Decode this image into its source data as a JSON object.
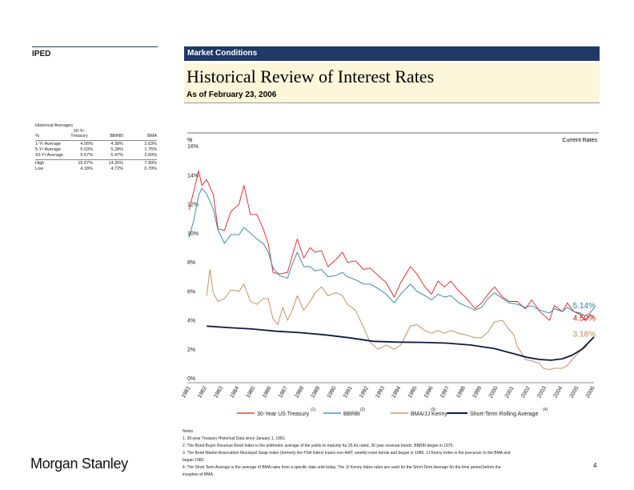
{
  "left_label": "IPED",
  "header": {
    "section": "Market Conditions"
  },
  "title": "Historical Review of Interest Rates",
  "subtitle": "As of February 23, 2006",
  "averages_table": {
    "title": "Historical Averages",
    "headers": [
      "%",
      "30-Yr. Treasury",
      "BBRBI",
      "BMA"
    ],
    "rows": [
      [
        "1-Yr Average",
        "4.56%",
        "4.38%",
        "2.63%"
      ],
      [
        "5-Yr Average",
        "5.03%",
        "5.28%",
        "1.75%"
      ],
      [
        "10-Yr Average",
        "5.67%",
        "5.47%",
        "2.60%"
      ]
    ],
    "extremes": [
      [
        "High",
        "15.07%",
        "14.26%",
        "7.99%"
      ],
      [
        "Low",
        "4.18%",
        "4.72%",
        "0.79%"
      ]
    ]
  },
  "chart_data": {
    "type": "line",
    "ylabel": "%",
    "annotation": "Current Rates",
    "ylim": [
      0,
      16
    ],
    "yticks": [
      "0%",
      "2%",
      "4%",
      "6%",
      "8%",
      "10%",
      "12%",
      "14%",
      "16%"
    ],
    "xlim": [
      1981,
      2006.15
    ],
    "xticks": [
      "1981",
      "1982",
      "1983",
      "1984",
      "1985",
      "1986",
      "1987",
      "1988",
      "1989",
      "1990",
      "1991",
      "1992",
      "1993",
      "1994",
      "1995",
      "1996",
      "1997",
      "1998",
      "1999",
      "2000",
      "2001",
      "2002",
      "2003",
      "2004",
      "2005",
      "2006"
    ],
    "current_labels": [
      {
        "text": "5.14%",
        "value": 5.14,
        "color": "#2e7fa0"
      },
      {
        "text": "4.50%",
        "value": 4.5,
        "color": "#cc1a1a"
      },
      {
        "text": "3.18%",
        "value": 3.18,
        "color": "#b8885a"
      }
    ],
    "series": [
      {
        "name": "30-Year US Treasury",
        "color": "#dd1f26",
        "points": [
          [
            1981.1,
            11.9
          ],
          [
            1981.4,
            13.2
          ],
          [
            1981.7,
            14.6
          ],
          [
            1981.9,
            13.6
          ],
          [
            1982.2,
            14.0
          ],
          [
            1982.6,
            13.0
          ],
          [
            1982.9,
            10.6
          ],
          [
            1983.3,
            10.5
          ],
          [
            1983.7,
            11.8
          ],
          [
            1984.2,
            12.3
          ],
          [
            1984.5,
            13.6
          ],
          [
            1984.9,
            11.6
          ],
          [
            1985.3,
            11.6
          ],
          [
            1985.7,
            10.6
          ],
          [
            1986.0,
            9.6
          ],
          [
            1986.3,
            7.6
          ],
          [
            1986.7,
            7.5
          ],
          [
            1987.2,
            7.6
          ],
          [
            1987.5,
            8.8
          ],
          [
            1987.8,
            9.9
          ],
          [
            1988.2,
            8.6
          ],
          [
            1988.6,
            9.3
          ],
          [
            1988.9,
            9.0
          ],
          [
            1989.3,
            9.1
          ],
          [
            1989.7,
            8.0
          ],
          [
            1990.2,
            8.5
          ],
          [
            1990.6,
            9.0
          ],
          [
            1990.9,
            8.3
          ],
          [
            1991.4,
            8.4
          ],
          [
            1991.9,
            7.8
          ],
          [
            1992.3,
            7.9
          ],
          [
            1992.8,
            7.4
          ],
          [
            1993.3,
            6.9
          ],
          [
            1993.8,
            5.9
          ],
          [
            1994.2,
            6.9
          ],
          [
            1994.8,
            8.0
          ],
          [
            1995.2,
            7.5
          ],
          [
            1995.7,
            6.6
          ],
          [
            1996.1,
            6.1
          ],
          [
            1996.5,
            7.0
          ],
          [
            1996.9,
            6.6
          ],
          [
            1997.3,
            7.0
          ],
          [
            1997.8,
            6.3
          ],
          [
            1998.2,
            5.9
          ],
          [
            1998.8,
            5.1
          ],
          [
            1999.2,
            5.5
          ],
          [
            1999.6,
            6.1
          ],
          [
            2000.0,
            6.6
          ],
          [
            2000.5,
            5.9
          ],
          [
            2000.9,
            5.6
          ],
          [
            2001.4,
            5.6
          ],
          [
            2001.9,
            5.1
          ],
          [
            2002.3,
            5.7
          ],
          [
            2002.8,
            4.9
          ],
          [
            2003.4,
            4.3
          ],
          [
            2003.7,
            5.3
          ],
          [
            2004.2,
            4.9
          ],
          [
            2004.5,
            5.5
          ],
          [
            2004.9,
            4.9
          ],
          [
            2005.3,
            4.7
          ],
          [
            2005.6,
            4.3
          ],
          [
            2005.9,
            4.7
          ],
          [
            2006.15,
            4.5
          ]
        ]
      },
      {
        "name": "BBRBI",
        "color": "#2e7fa0",
        "points": [
          [
            1981.1,
            10.0
          ],
          [
            1981.4,
            11.2
          ],
          [
            1981.7,
            12.9
          ],
          [
            1981.9,
            13.4
          ],
          [
            1982.2,
            13.0
          ],
          [
            1982.6,
            12.0
          ],
          [
            1982.9,
            10.5
          ],
          [
            1983.3,
            9.6
          ],
          [
            1983.7,
            10.2
          ],
          [
            1984.2,
            10.2
          ],
          [
            1984.5,
            10.7
          ],
          [
            1984.9,
            10.3
          ],
          [
            1985.3,
            9.9
          ],
          [
            1985.7,
            9.6
          ],
          [
            1986.0,
            9.0
          ],
          [
            1986.3,
            7.9
          ],
          [
            1986.7,
            7.4
          ],
          [
            1987.2,
            7.2
          ],
          [
            1987.5,
            8.2
          ],
          [
            1987.8,
            9.0
          ],
          [
            1988.2,
            8.0
          ],
          [
            1988.6,
            8.0
          ],
          [
            1988.9,
            7.7
          ],
          [
            1989.3,
            7.8
          ],
          [
            1989.7,
            7.3
          ],
          [
            1990.2,
            7.4
          ],
          [
            1990.6,
            7.6
          ],
          [
            1990.9,
            7.3
          ],
          [
            1991.4,
            7.1
          ],
          [
            1991.9,
            6.8
          ],
          [
            1992.3,
            6.8
          ],
          [
            1992.8,
            6.5
          ],
          [
            1993.3,
            6.1
          ],
          [
            1993.8,
            5.5
          ],
          [
            1994.2,
            6.1
          ],
          [
            1994.8,
            6.8
          ],
          [
            1995.2,
            6.3
          ],
          [
            1995.7,
            6.0
          ],
          [
            1996.1,
            5.7
          ],
          [
            1996.5,
            6.1
          ],
          [
            1996.9,
            5.9
          ],
          [
            1997.3,
            6.0
          ],
          [
            1997.8,
            5.5
          ],
          [
            1998.2,
            5.3
          ],
          [
            1998.8,
            5.0
          ],
          [
            1999.2,
            5.2
          ],
          [
            1999.6,
            5.8
          ],
          [
            2000.0,
            6.2
          ],
          [
            2000.5,
            5.8
          ],
          [
            2000.9,
            5.5
          ],
          [
            2001.4,
            5.4
          ],
          [
            2001.9,
            5.2
          ],
          [
            2002.3,
            5.3
          ],
          [
            2002.8,
            5.0
          ],
          [
            2003.4,
            4.8
          ],
          [
            2003.7,
            5.1
          ],
          [
            2004.2,
            4.9
          ],
          [
            2004.5,
            5.2
          ],
          [
            2004.9,
            4.9
          ],
          [
            2005.3,
            4.8
          ],
          [
            2005.6,
            4.6
          ],
          [
            2005.9,
            4.8
          ],
          [
            2006.15,
            5.14
          ]
        ]
      },
      {
        "name": "BMA/JJ Kenny",
        "color": "#b8885a",
        "points": [
          [
            1982.2,
            6.0
          ],
          [
            1982.4,
            7.8
          ],
          [
            1982.6,
            6.2
          ],
          [
            1982.9,
            5.6
          ],
          [
            1983.3,
            5.8
          ],
          [
            1983.7,
            6.4
          ],
          [
            1984.2,
            6.3
          ],
          [
            1984.5,
            6.8
          ],
          [
            1984.9,
            5.6
          ],
          [
            1985.3,
            5.4
          ],
          [
            1985.7,
            5.8
          ],
          [
            1986.0,
            5.8
          ],
          [
            1986.3,
            4.4
          ],
          [
            1986.6,
            4.0
          ],
          [
            1986.9,
            5.2
          ],
          [
            1987.2,
            4.3
          ],
          [
            1987.5,
            5.0
          ],
          [
            1987.8,
            6.0
          ],
          [
            1988.2,
            5.0
          ],
          [
            1988.6,
            5.6
          ],
          [
            1988.9,
            6.2
          ],
          [
            1989.3,
            6.6
          ],
          [
            1989.7,
            6.0
          ],
          [
            1990.2,
            6.2
          ],
          [
            1990.6,
            6.0
          ],
          [
            1990.9,
            5.4
          ],
          [
            1991.4,
            5.0
          ],
          [
            1991.9,
            3.8
          ],
          [
            1992.3,
            2.8
          ],
          [
            1992.8,
            2.3
          ],
          [
            1993.3,
            2.6
          ],
          [
            1993.8,
            2.3
          ],
          [
            1994.2,
            2.6
          ],
          [
            1994.8,
            3.9
          ],
          [
            1995.2,
            4.0
          ],
          [
            1995.7,
            3.6
          ],
          [
            1996.1,
            3.4
          ],
          [
            1996.5,
            3.6
          ],
          [
            1996.9,
            3.4
          ],
          [
            1997.3,
            3.6
          ],
          [
            1997.8,
            3.4
          ],
          [
            1998.2,
            3.3
          ],
          [
            1998.8,
            3.1
          ],
          [
            1999.2,
            3.1
          ],
          [
            1999.6,
            3.5
          ],
          [
            2000.0,
            4.2
          ],
          [
            2000.5,
            4.3
          ],
          [
            2000.8,
            3.8
          ],
          [
            2001.2,
            3.3
          ],
          [
            2001.4,
            2.5
          ],
          [
            2001.7,
            2.0
          ],
          [
            2001.9,
            1.6
          ],
          [
            2002.3,
            1.5
          ],
          [
            2002.8,
            1.3
          ],
          [
            2003.0,
            1.0
          ],
          [
            2003.4,
            0.9
          ],
          [
            2003.7,
            1.0
          ],
          [
            2004.2,
            1.0
          ],
          [
            2004.5,
            1.2
          ],
          [
            2004.9,
            1.7
          ],
          [
            2005.3,
            2.2
          ],
          [
            2005.6,
            2.4
          ],
          [
            2005.9,
            2.9
          ],
          [
            2006.15,
            3.18
          ]
        ]
      },
      {
        "name": "Short-Term Rolling Average",
        "color": "#101a40",
        "points": [
          [
            1982.2,
            3.9
          ],
          [
            1983.5,
            3.8
          ],
          [
            1985.0,
            3.7
          ],
          [
            1986.5,
            3.55
          ],
          [
            1988.0,
            3.45
          ],
          [
            1989.5,
            3.3
          ],
          [
            1991.0,
            3.1
          ],
          [
            1992.5,
            2.85
          ],
          [
            1994.0,
            2.8
          ],
          [
            1995.5,
            2.78
          ],
          [
            1997.0,
            2.73
          ],
          [
            1998.5,
            2.6
          ],
          [
            2000.0,
            2.35
          ],
          [
            2001.0,
            2.05
          ],
          [
            2002.0,
            1.75
          ],
          [
            2002.8,
            1.6
          ],
          [
            2003.5,
            1.55
          ],
          [
            2004.2,
            1.65
          ],
          [
            2004.8,
            1.9
          ],
          [
            2005.4,
            2.3
          ],
          [
            2005.8,
            2.75
          ],
          [
            2006.15,
            3.15
          ]
        ]
      }
    ],
    "legend": {
      "placement": "bottom",
      "footnote_marks": [
        "(1)",
        "(2)",
        "(3)",
        "(4)"
      ]
    }
  },
  "notes": {
    "heading": "Notes",
    "items": [
      "1.  30-year Treasury Historical Data since January 1, 1981.",
      "2.  The Bond Buyer Revenue Bond Index is the arithmetic average of  the yields to maturity for 25 A1 rated, 30 year revenue bonds.  BBRBI began in 1979.",
      "3.  The Bond Market Association Municipal Swap Index (formerly the PSA Index) tracks non-AMT, weekly-reset bonds and began in 1989. JJ Kenny Index is the precursor to the BMA and",
      "     began 1982.",
      "4.  The Short Term Average is the average of BMA rates from a specific date until today.  The JJ Kenny Index rates are used for the Short Term Average for the time period before the",
      "     inception of BMA."
    ]
  },
  "footer": {
    "logo": "Morgan Stanley",
    "page": "4"
  }
}
